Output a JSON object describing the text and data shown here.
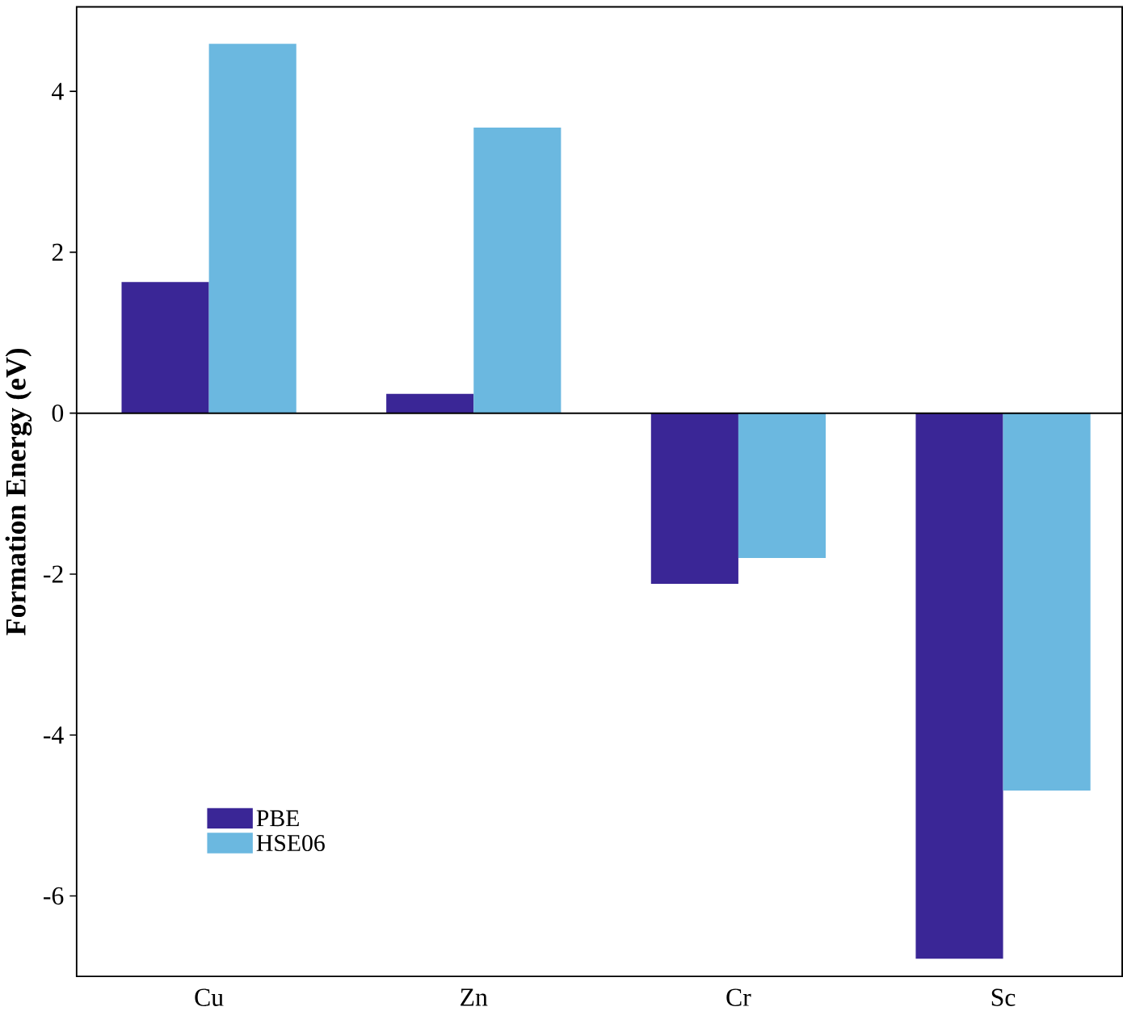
{
  "chart_data": {
    "type": "bar",
    "ylabel": "Formation Energy (eV)",
    "categories": [
      "Cu",
      "Zn",
      "Cr",
      "Sc"
    ],
    "series": [
      {
        "name": "PBE",
        "color": "#3a2696",
        "values": [
          1.63,
          0.24,
          -2.12,
          -6.78
        ]
      },
      {
        "name": "HSE06",
        "color": "#6bb8e0",
        "values": [
          4.59,
          3.55,
          -1.8,
          -4.69
        ]
      }
    ],
    "ylim": [
      -7,
      5.05
    ],
    "yticks": [
      -6,
      -4,
      -2,
      0,
      2,
      4
    ],
    "grid": false,
    "legend": "bottom left",
    "ref_lines": [
      {
        "axis": "y",
        "value": 0,
        "color": "#000000"
      }
    ]
  }
}
